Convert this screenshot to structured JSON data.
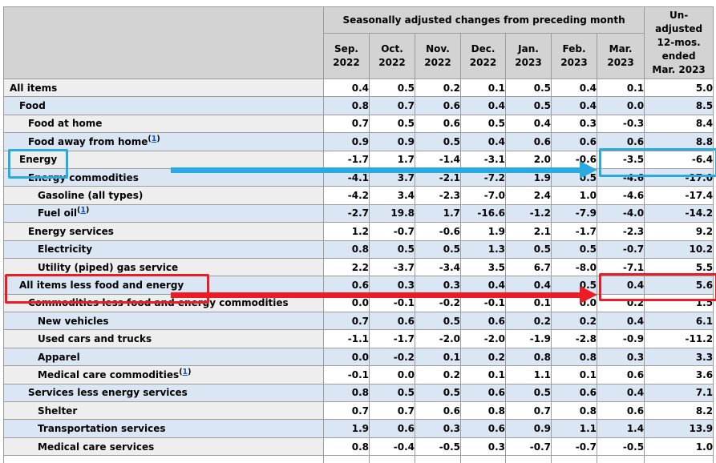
{
  "table": {
    "group_header_label": "Seasonally adjusted changes from preceding month",
    "month_headers": [
      [
        "Sep.",
        "2022"
      ],
      [
        "Oct.",
        "2022"
      ],
      [
        "Nov.",
        "2022"
      ],
      [
        "Dec.",
        "2022"
      ],
      [
        "Jan.",
        "2023"
      ],
      [
        "Feb.",
        "2023"
      ],
      [
        "Mar.",
        "2023"
      ]
    ],
    "unadjusted_header_lines": [
      "Un-",
      "adjusted",
      "12-mos.",
      "ended",
      "Mar. 2023"
    ],
    "colors": {
      "header_bg": "#d3d3d3",
      "row_blue": "#dbe6f4",
      "row_gray_stub": "#eeeeee",
      "label_navy": "#1f3864",
      "footnote_link_blue": "#1155cc",
      "border_gray": "#9d9d9d"
    }
  },
  "annotations": {
    "cyan_color": "#29abe2",
    "red_color": "#ed1c24",
    "cyan_highlight": {
      "row": "Energy",
      "boxed_values": [
        -3.5,
        -6.4
      ],
      "boxed_columns": [
        "Mar. 2023",
        "Un-adjusted 12-mos. ended Mar. 2023"
      ]
    },
    "red_highlight": {
      "row": "All items less food and energy",
      "boxed_values": [
        0.4,
        5.6
      ],
      "boxed_columns": [
        "Mar. 2023",
        "Un-adjusted 12-mos. ended Mar. 2023"
      ]
    }
  },
  "chart_data": {
    "type": "table",
    "title": "Seasonally adjusted changes from preceding month",
    "columns": [
      "Sep. 2022",
      "Oct. 2022",
      "Nov. 2022",
      "Dec. 2022",
      "Jan. 2023",
      "Feb. 2023",
      "Mar. 2023",
      "Un-adjusted 12-mos. ended Mar. 2023"
    ],
    "rows": [
      {
        "label": "All items",
        "indent": 0,
        "footnote": null,
        "values": [
          0.4,
          0.5,
          0.2,
          0.1,
          0.5,
          0.4,
          0.1,
          5.0
        ]
      },
      {
        "label": "Food",
        "indent": 1,
        "footnote": null,
        "values": [
          0.8,
          0.7,
          0.6,
          0.4,
          0.5,
          0.4,
          0.0,
          8.5
        ]
      },
      {
        "label": "Food at home",
        "indent": 2,
        "footnote": null,
        "values": [
          0.7,
          0.5,
          0.6,
          0.5,
          0.4,
          0.3,
          -0.3,
          8.4
        ]
      },
      {
        "label": "Food away from home",
        "indent": 2,
        "footnote": "1",
        "values": [
          0.9,
          0.9,
          0.5,
          0.4,
          0.6,
          0.6,
          0.6,
          8.8
        ]
      },
      {
        "label": "Energy",
        "indent": 1,
        "footnote": null,
        "values": [
          -1.7,
          1.7,
          -1.4,
          -3.1,
          2.0,
          -0.6,
          -3.5,
          -6.4
        ]
      },
      {
        "label": "Energy commodities",
        "indent": 2,
        "footnote": null,
        "values": [
          -4.1,
          3.7,
          -2.1,
          -7.2,
          1.9,
          0.5,
          -4.6,
          -17.0
        ]
      },
      {
        "label": "Gasoline (all types)",
        "indent": 3,
        "footnote": null,
        "values": [
          -4.2,
          3.4,
          -2.3,
          -7.0,
          2.4,
          1.0,
          -4.6,
          -17.4
        ]
      },
      {
        "label": "Fuel oil",
        "indent": 3,
        "footnote": "1",
        "values": [
          -2.7,
          19.8,
          1.7,
          -16.6,
          -1.2,
          -7.9,
          -4.0,
          -14.2
        ]
      },
      {
        "label": "Energy services",
        "indent": 2,
        "footnote": null,
        "values": [
          1.2,
          -0.7,
          -0.6,
          1.9,
          2.1,
          -1.7,
          -2.3,
          9.2
        ]
      },
      {
        "label": "Electricity",
        "indent": 3,
        "footnote": null,
        "values": [
          0.8,
          0.5,
          0.5,
          1.3,
          0.5,
          0.5,
          -0.7,
          10.2
        ]
      },
      {
        "label": "Utility (piped) gas service",
        "indent": 3,
        "footnote": null,
        "values": [
          2.2,
          -3.7,
          -3.4,
          3.5,
          6.7,
          -8.0,
          -7.1,
          5.5
        ]
      },
      {
        "label": "All items less food and energy",
        "indent": 1,
        "footnote": null,
        "values": [
          0.6,
          0.3,
          0.3,
          0.4,
          0.4,
          0.5,
          0.4,
          5.6
        ]
      },
      {
        "label": "Commodities less food and energy commodities",
        "indent": 2,
        "footnote": null,
        "values": [
          0.0,
          -0.1,
          -0.2,
          -0.1,
          0.1,
          0.0,
          0.2,
          1.5
        ]
      },
      {
        "label": "New vehicles",
        "indent": 3,
        "footnote": null,
        "values": [
          0.7,
          0.6,
          0.5,
          0.6,
          0.2,
          0.2,
          0.4,
          6.1
        ]
      },
      {
        "label": "Used cars and trucks",
        "indent": 3,
        "footnote": null,
        "values": [
          -1.1,
          -1.7,
          -2.0,
          -2.0,
          -1.9,
          -2.8,
          -0.9,
          -11.2
        ]
      },
      {
        "label": "Apparel",
        "indent": 3,
        "footnote": null,
        "values": [
          0.0,
          -0.2,
          0.1,
          0.2,
          0.8,
          0.8,
          0.3,
          3.3
        ]
      },
      {
        "label": "Medical care commodities",
        "indent": 3,
        "footnote": "1",
        "values": [
          -0.1,
          0.0,
          0.2,
          0.1,
          1.1,
          0.1,
          0.6,
          3.6
        ]
      },
      {
        "label": "Services less energy services",
        "indent": 2,
        "footnote": null,
        "values": [
          0.8,
          0.5,
          0.5,
          0.6,
          0.5,
          0.6,
          0.4,
          7.1
        ]
      },
      {
        "label": "Shelter",
        "indent": 3,
        "footnote": null,
        "values": [
          0.7,
          0.7,
          0.6,
          0.8,
          0.7,
          0.8,
          0.6,
          8.2
        ]
      },
      {
        "label": "Transportation services",
        "indent": 3,
        "footnote": null,
        "values": [
          1.9,
          0.6,
          0.3,
          0.6,
          0.9,
          1.1,
          1.4,
          13.9
        ]
      },
      {
        "label": "Medical care services",
        "indent": 3,
        "footnote": null,
        "values": [
          0.8,
          -0.4,
          -0.5,
          0.3,
          -0.7,
          -0.7,
          -0.5,
          1.0
        ]
      }
    ]
  }
}
